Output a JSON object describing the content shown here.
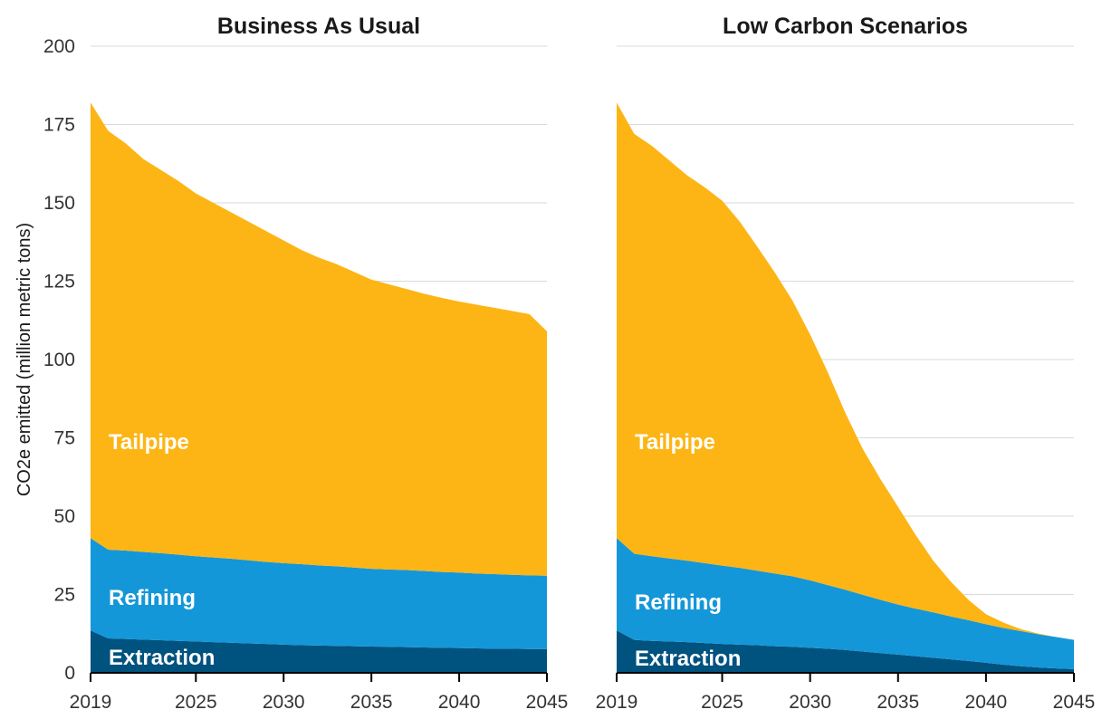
{
  "chart_data": {
    "type": "area",
    "stacked": true,
    "ylabel": "CO2e emitted (million metric tons)",
    "ylim": [
      0,
      200
    ],
    "yticks": [
      0,
      25,
      50,
      75,
      100,
      125,
      150,
      175,
      200
    ],
    "xlim": [
      2019,
      2045
    ],
    "xticks": [
      2019,
      2025,
      2030,
      2035,
      2040,
      2045
    ],
    "grid": "horizontal",
    "colors": {
      "Extraction": "#00527f",
      "Refining": "#1497d8",
      "Tailpipe": "#fdb515"
    },
    "panels": [
      {
        "title": "Business As Usual",
        "x": [
          2019,
          2020,
          2021,
          2022,
          2023,
          2024,
          2025,
          2026,
          2027,
          2028,
          2029,
          2030,
          2031,
          2032,
          2033,
          2034,
          2035,
          2036,
          2037,
          2038,
          2039,
          2040,
          2041,
          2042,
          2043,
          2044,
          2045
        ],
        "series": [
          {
            "name": "Extraction",
            "values": [
              13.5,
              11,
              10.8,
              10.6,
              10.4,
              10.2,
              10,
              9.8,
              9.6,
              9.4,
              9.2,
              9,
              8.8,
              8.7,
              8.6,
              8.5,
              8.4,
              8.3,
              8.2,
              8.1,
              8,
              7.9,
              7.8,
              7.7,
              7.7,
              7.6,
              7.6
            ]
          },
          {
            "name": "Refining",
            "values": [
              29.5,
              28.3,
              28.2,
              28,
              27.8,
              27.5,
              27.2,
              27,
              26.8,
              26.5,
              26.2,
              26,
              25.9,
              25.6,
              25.4,
              25.1,
              24.8,
              24.7,
              24.6,
              24.4,
              24.2,
              24.1,
              23.9,
              23.8,
              23.6,
              23.5,
              23.4
            ]
          },
          {
            "name": "Tailpipe",
            "values": [
              139,
              133.7,
              130,
              125.4,
              122.3,
              119.3,
              115.8,
              113.2,
              110.6,
              108.1,
              105.6,
              103,
              100.3,
              98.2,
              96.5,
              94.4,
              92.3,
              91,
              89.7,
              88.5,
              87.5,
              86.5,
              85.8,
              85,
              84.2,
              83.4,
              78
            ]
          }
        ]
      },
      {
        "title": "Low Carbon Scenarios",
        "x": [
          2019,
          2020,
          2021,
          2022,
          2023,
          2024,
          2025,
          2026,
          2027,
          2028,
          2029,
          2030,
          2031,
          2032,
          2033,
          2034,
          2035,
          2036,
          2037,
          2038,
          2039,
          2040,
          2041,
          2042,
          2043,
          2044,
          2045
        ],
        "series": [
          {
            "name": "Extraction",
            "values": [
              13.5,
              10.5,
              10.2,
              10,
              9.8,
              9.5,
              9.2,
              9,
              8.8,
              8.5,
              8.3,
              8,
              7.7,
              7.3,
              6.8,
              6.3,
              5.8,
              5.3,
              4.8,
              4.3,
              3.8,
              3.2,
              2.6,
              2.1,
              1.7,
              1.4,
              1.2
            ]
          },
          {
            "name": "Refining",
            "values": [
              29.5,
              27.5,
              27,
              26.5,
              26,
              25.5,
              25,
              24.5,
              23.8,
              23.2,
              22.5,
              21.5,
              20.3,
              19.2,
              18.1,
              17,
              16,
              15.2,
              14.5,
              13.7,
              13,
              12.3,
              11.7,
              11.2,
              10.6,
              10,
              9.3
            ]
          },
          {
            "name": "Tailpipe",
            "values": [
              139,
              134,
              131,
              127,
              123,
              120,
              116.5,
              110.5,
              103.4,
              96,
              88,
              78.5,
              68,
              56.5,
              46.5,
              38.5,
              31.2,
              23.5,
              16.5,
              11.1,
              6.5,
              3.2,
              1.7,
              0.6,
              0.2,
              0,
              0
            ]
          }
        ]
      }
    ],
    "area_labels": [
      {
        "series": "Tailpipe",
        "text": "Tailpipe"
      },
      {
        "series": "Refining",
        "text": "Refining"
      },
      {
        "series": "Extraction",
        "text": "Extraction"
      }
    ]
  }
}
